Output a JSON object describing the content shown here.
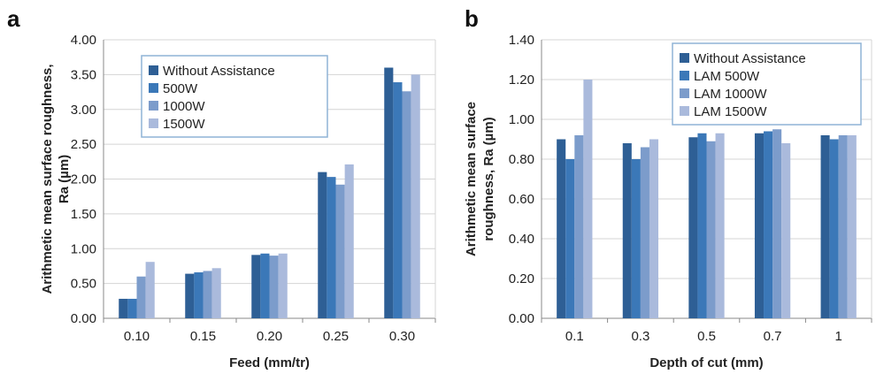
{
  "chart_data": [
    {
      "panel": "a",
      "type": "bar",
      "xlabel": "Feed (mm/tr)",
      "ylabel": "Arithmetic mean surface roughness, Ra (µm)",
      "ylabel_lines": [
        "Arithmetic mean surface roughness,",
        "Ra (µm)"
      ],
      "ylim": [
        0,
        4
      ],
      "ytick_step": 0.5,
      "ytick_decimals": 2,
      "grid": true,
      "legend_position": "top-left",
      "categories": [
        "0.10",
        "0.15",
        "0.20",
        "0.25",
        "0.30"
      ],
      "series": [
        {
          "name": "Without Assistance",
          "color": "#2e5f95",
          "values": [
            0.28,
            0.64,
            0.91,
            2.1,
            3.6
          ]
        },
        {
          "name": "500W",
          "color": "#3b78b8",
          "values": [
            0.28,
            0.66,
            0.93,
            2.03,
            3.39
          ]
        },
        {
          "name": "1000W",
          "color": "#7c9ccb",
          "values": [
            0.6,
            0.68,
            0.9,
            1.92,
            3.26
          ]
        },
        {
          "name": "1500W",
          "color": "#aabadc",
          "values": [
            0.81,
            0.72,
            0.93,
            2.21,
            3.5
          ]
        }
      ]
    },
    {
      "panel": "b",
      "type": "bar",
      "xlabel": "Depth of cut (mm)",
      "ylabel": "Arithmetic mean surface roughness, Ra (µm)",
      "ylabel_lines": [
        "Arithmetic mean surface",
        "roughness, Ra (µm)"
      ],
      "ylim": [
        0,
        1.4
      ],
      "ytick_step": 0.2,
      "ytick_decimals": 2,
      "grid": true,
      "legend_position": "top-right",
      "categories": [
        "0.1",
        "0.3",
        "0.5",
        "0.7",
        "1"
      ],
      "series": [
        {
          "name": "Without Assistance",
          "color": "#2e5f95",
          "values": [
            0.9,
            0.88,
            0.91,
            0.93,
            0.92
          ]
        },
        {
          "name": "LAM 500W",
          "color": "#3b78b8",
          "values": [
            0.8,
            0.8,
            0.93,
            0.94,
            0.9
          ]
        },
        {
          "name": "LAM 1000W",
          "color": "#7c9ccb",
          "values": [
            0.92,
            0.86,
            0.89,
            0.95,
            0.92
          ]
        },
        {
          "name": "LAM 1500W",
          "color": "#aabadc",
          "values": [
            1.2,
            0.9,
            0.93,
            0.88,
            0.92
          ]
        }
      ]
    }
  ]
}
